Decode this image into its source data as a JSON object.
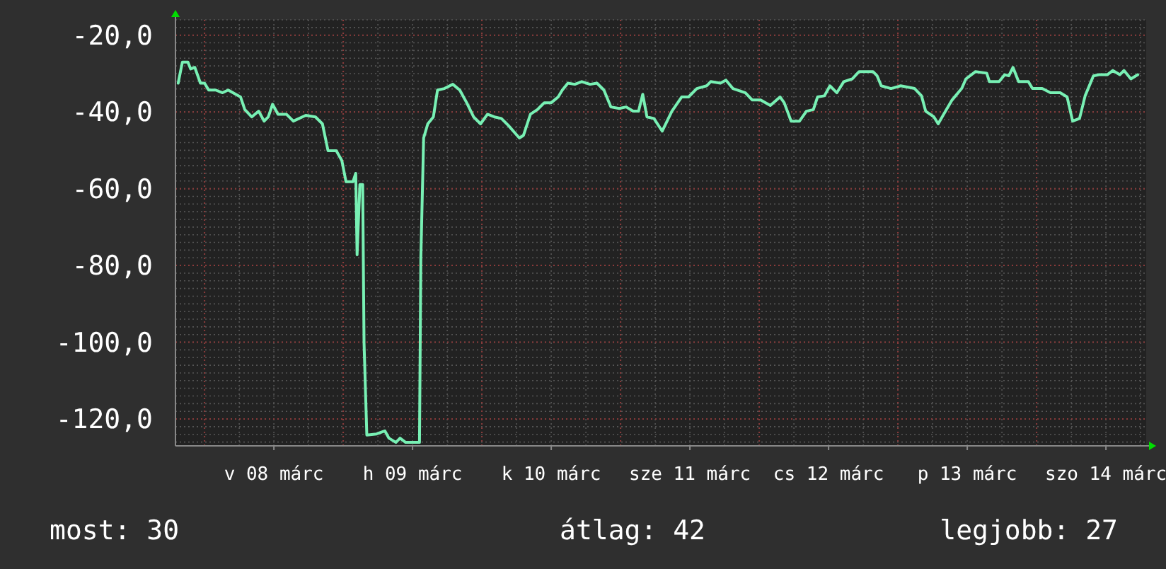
{
  "chart_data": {
    "type": "line",
    "x": [
      "--03-07T19:26",
      "--03-07T20:10",
      "--03-07T21:07",
      "--03-07T21:36",
      "--03-07T22:19",
      "--03-07T23:17",
      "--03-08T00:00",
      "--03-08T00:43",
      "--03-08T01:55",
      "--03-08T03:07",
      "--03-08T04:05",
      "--03-08T06:14",
      "--03-08T06:58",
      "--03-08T08:10",
      "--03-08T09:22",
      "--03-08T10:19",
      "--03-08T11:02",
      "--03-08T11:46",
      "--03-08T12:43",
      "--03-08T14:10",
      "--03-08T15:22",
      "--03-08T17:31",
      "--03-08T19:12",
      "--03-08T20:24",
      "--03-08T21:22",
      "--03-08T22:48",
      "--03-08T23:46",
      "--03-09T00:29",
      "--03-09T01:41",
      "--03-09T02:10",
      "--03-09T02:24",
      "--03-09T02:53",
      "--03-09T03:22",
      "--03-09T03:36",
      "--03-09T04:05",
      "--03-09T05:46",
      "--03-09T07:12",
      "--03-09T07:55",
      "--03-09T09:07",
      "--03-09T09:50",
      "--03-09T10:48",
      "--03-09T12:00",
      "--03-09T13:12",
      "--03-09T13:26",
      "--03-09T13:55",
      "--03-09T14:38",
      "--03-09T15:36",
      "--03-09T16:19",
      "--03-09T17:31",
      "--03-09T18:58",
      "--03-09T20:10",
      "--03-09T21:22",
      "--03-09T22:34",
      "--03-09T23:46",
      "--03-10T00:58",
      "--03-10T02:10",
      "--03-10T03:22",
      "--03-10T04:34",
      "--03-10T06:29",
      "--03-10T07:12",
      "--03-10T08:24",
      "--03-10T09:36",
      "--03-10T10:48",
      "--03-10T12:00",
      "--03-10T13:12",
      "--03-10T13:55",
      "--03-10T14:53",
      "--03-10T16:05",
      "--03-10T17:17",
      "--03-10T18:43",
      "--03-10T19:55",
      "--03-10T21:07",
      "--03-10T22:19",
      "--03-10T23:46",
      "--03-11T00:58",
      "--03-11T02:10",
      "--03-11T03:07",
      "--03-11T03:50",
      "--03-11T04:34",
      "--03-11T05:46",
      "--03-11T07:12",
      "--03-11T08:53",
      "--03-11T10:34",
      "--03-11T11:46",
      "--03-11T13:12",
      "--03-11T14:53",
      "--03-11T15:36",
      "--03-11T17:17",
      "--03-11T18:14",
      "--03-11T19:26",
      "--03-11T21:36",
      "--03-11T22:48",
      "--03-12T00:14",
      "--03-12T01:55",
      "--03-12T03:36",
      "--03-12T04:19",
      "--03-12T05:31",
      "--03-12T06:58",
      "--03-12T08:10",
      "--03-12T09:22",
      "--03-12T10:05",
      "--03-12T11:17",
      "--03-12T12:14",
      "--03-12T13:26",
      "--03-12T14:38",
      "--03-12T16:05",
      "--03-12T17:17",
      "--03-12T19:41",
      "--03-12T20:24",
      "--03-12T21:07",
      "--03-12T22:48",
      "--03-13T00:29",
      "--03-13T02:53",
      "--03-13T04:05",
      "--03-13T04:48",
      "--03-13T06:14",
      "--03-13T06:58",
      "--03-13T07:55",
      "--03-13T09:22",
      "--03-13T11:02",
      "--03-13T11:46",
      "--03-13T13:26",
      "--03-13T15:22",
      "--03-13T15:50",
      "--03-13T17:31",
      "--03-13T18:29",
      "--03-13T19:12",
      "--03-13T19:55",
      "--03-13T20:53",
      "--03-13T22:34",
      "--03-13T23:17",
      "--03-14T00:58",
      "--03-14T02:24",
      "--03-14T04:05",
      "--03-14T05:17",
      "--03-14T06:14",
      "--03-14T07:26",
      "--03-14T08:24",
      "--03-14T09:50",
      "--03-14T10:48",
      "--03-14T12:14",
      "--03-14T13:12",
      "--03-14T14:24",
      "--03-14T15:07",
      "--03-14T16:19",
      "--03-14T17:31"
    ],
    "series": [
      {
        "color": "#78f0b4",
        "values": [
          -32.5,
          -27.0,
          -27.0,
          -28.8,
          -28.4,
          -32.5,
          -32.5,
          -34.3,
          -34.3,
          -35.0,
          -34.3,
          -36.1,
          -39.4,
          -41.3,
          -39.8,
          -42.4,
          -41.3,
          -38.0,
          -40.6,
          -40.6,
          -42.4,
          -40.9,
          -41.3,
          -43.1,
          -50.1,
          -50.1,
          -52.7,
          -58.2,
          -58.2,
          -56.0,
          -77.2,
          -58.9,
          -58.9,
          -100.0,
          -124.2,
          -123.9,
          -123.1,
          -125.0,
          -126.1,
          -125.0,
          -126.1,
          -126.1,
          -126.1,
          -78.0,
          -46.8,
          -43.1,
          -41.3,
          -34.3,
          -33.9,
          -32.8,
          -34.3,
          -37.6,
          -41.3,
          -43.1,
          -40.6,
          -41.3,
          -41.7,
          -43.5,
          -46.8,
          -46.1,
          -40.6,
          -39.4,
          -37.6,
          -37.6,
          -36.1,
          -34.3,
          -32.5,
          -32.8,
          -32.1,
          -32.8,
          -32.5,
          -34.3,
          -38.7,
          -39.1,
          -38.7,
          -39.8,
          -39.8,
          -35.4,
          -41.3,
          -41.7,
          -45.0,
          -39.8,
          -36.1,
          -36.1,
          -33.9,
          -33.2,
          -32.1,
          -32.5,
          -31.7,
          -33.9,
          -35.0,
          -36.9,
          -36.9,
          -38.3,
          -36.1,
          -37.6,
          -42.4,
          -42.4,
          -39.8,
          -39.4,
          -36.1,
          -35.8,
          -33.2,
          -35.0,
          -32.1,
          -31.4,
          -29.5,
          -29.5,
          -30.6,
          -33.2,
          -33.9,
          -33.2,
          -33.9,
          -35.8,
          -39.8,
          -41.3,
          -43.1,
          -40.6,
          -36.9,
          -33.9,
          -31.4,
          -29.5,
          -29.9,
          -32.1,
          -32.1,
          -30.3,
          -30.6,
          -28.4,
          -32.1,
          -32.1,
          -33.9,
          -33.9,
          -35.0,
          -35.0,
          -36.1,
          -42.4,
          -41.7,
          -35.8,
          -30.6,
          -30.3,
          -30.3,
          -29.2,
          -30.3,
          -29.2,
          -31.4,
          -30.3
        ]
      }
    ],
    "xlim": [
      "--03-07T18:58",
      "--03-14T18:58"
    ],
    "xticks": [
      {
        "value": "--03-08T12:00",
        "label": "v 08 márc"
      },
      {
        "value": "--03-09T12:00",
        "label": "h 09 márc"
      },
      {
        "value": "--03-10T12:00",
        "label": "k 10 márc"
      },
      {
        "value": "--03-11T12:00",
        "label": "sze 11 márc"
      },
      {
        "value": "--03-12T12:00",
        "label": "cs 12 márc"
      },
      {
        "value": "--03-13T12:00",
        "label": "p 13 márc"
      },
      {
        "value": "--03-14T12:00",
        "label": "szo 14 márc"
      }
    ],
    "ylim": [
      -127,
      -16
    ],
    "yticks": [
      {
        "value": -20,
        "label": "-20,0"
      },
      {
        "value": -40,
        "label": "-40,0"
      },
      {
        "value": -60,
        "label": "-60,0"
      },
      {
        "value": -80,
        "label": "-80,0"
      },
      {
        "value": -100,
        "label": "-100,0"
      },
      {
        "value": -120,
        "label": "-120,0"
      }
    ],
    "grid": true,
    "annotations": [
      "most: 30",
      "átlag: 42",
      "legjobb: 27"
    ]
  }
}
